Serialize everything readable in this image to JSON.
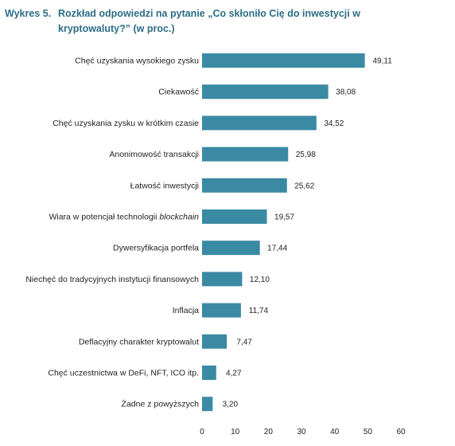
{
  "figure": {
    "label": "Wykres 5.",
    "title": "Rozkład odpowiedzi na pytanie „Co skłoniło Cię do inwestycji w kryptowaluty?” (w proc.)"
  },
  "chart_data": {
    "type": "bar",
    "orientation": "horizontal",
    "title": "Rozkład odpowiedzi na pytanie „Co skłoniło Cię do inwestycji w kryptowaluty?” (w proc.)",
    "xlabel": "",
    "ylabel": "",
    "xlim": [
      0,
      60
    ],
    "xticks": [
      "0",
      "10",
      "20",
      "30",
      "40",
      "50",
      "60"
    ],
    "grid": false,
    "bar_color": "#3a8aa3",
    "categories": [
      "Chęć uzyskania wysokiego zysku",
      "Ciekawość",
      "Chęć uzyskania zysku w krótkim czasie",
      "Anonimowość transakcji",
      "Łatwość inwestycji",
      "Wiara w potencjał technologii blockchain",
      "Dywersyfikacja portfela",
      "Niechęć do tradycyjnych instytucji finansowych",
      "Inflacja",
      "Deflacyjny charakter kryptowalut",
      "Chęć uczestnictwa w DeFi, NFT, ICO itp.",
      "Żadne z powyższych"
    ],
    "values": [
      49.11,
      38.08,
      34.52,
      25.98,
      25.62,
      19.57,
      17.44,
      12.1,
      11.74,
      7.47,
      4.27,
      3.2
    ],
    "value_labels": [
      "49,11",
      "38,08",
      "34,52",
      "25,98",
      "25,62",
      "19,57",
      "17,44",
      "12,10",
      "11,74",
      "7,47",
      "4,27",
      "3,20"
    ],
    "italic_fragments": [
      "",
      "",
      "",
      "",
      "",
      "blockchain",
      "",
      "",
      "",
      "",
      "",
      ""
    ]
  }
}
